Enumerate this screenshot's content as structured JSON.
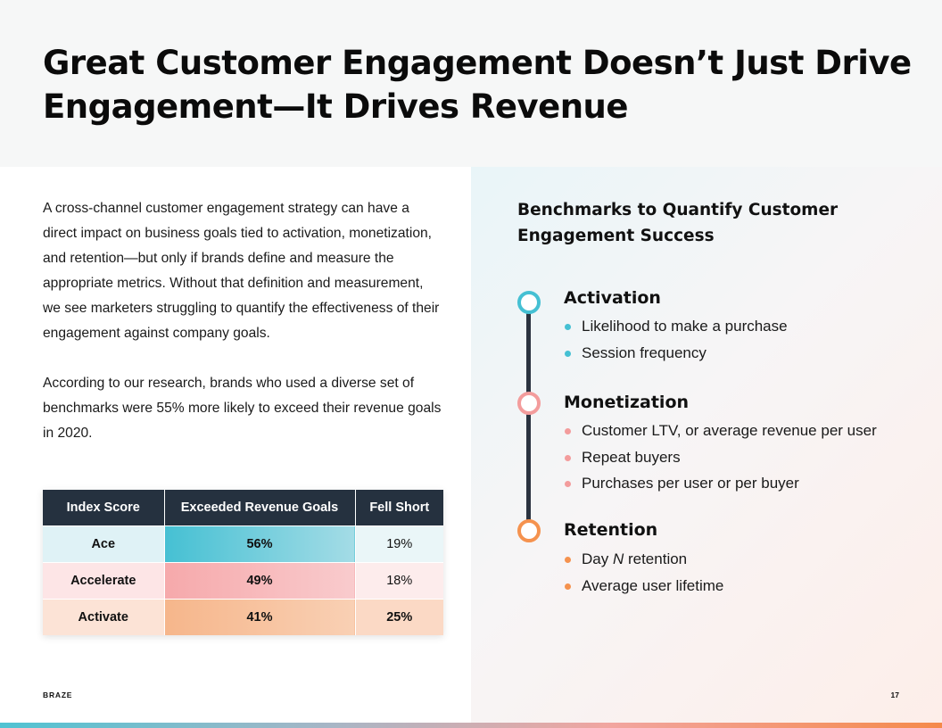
{
  "title": "Great Customer Engagement Doesn’t Just Drive Engagement—It Drives Revenue",
  "intro_paragraphs": [
    "A cross-channel customer engagement strategy can have a direct impact on business goals tied to activation, monetization, and retention—but only if brands define and measure the appropriate metrics. Without that definition and measurement, we see marketers struggling to quantify the effectiveness of their engagement against company goals.",
    "According to our research, brands who used a diverse set of benchmarks were 55% more likely to exceed their revenue goals in 2020."
  ],
  "table": {
    "headers": [
      "Index Score",
      "Exceeded Revenue Goals",
      "Fell Short"
    ],
    "rows": [
      {
        "name": "Ace",
        "exceeded": "56%",
        "fell_short": "19%"
      },
      {
        "name": "Accelerate",
        "exceeded": "49%",
        "fell_short": "18%"
      },
      {
        "name": "Activate",
        "exceeded": "41%",
        "fell_short": "25%"
      }
    ]
  },
  "benchmarks": {
    "title": "Benchmarks to Quantify Customer Engagement Success",
    "sections": [
      {
        "title": "Activation",
        "color": "#45c0d3",
        "items": [
          "Likelihood to make a purchase",
          "Session frequency"
        ]
      },
      {
        "title": "Monetization",
        "color": "#f39c9c",
        "items": [
          "Customer LTV, or average revenue per user",
          "Repeat buyers",
          "Purchases per user or per buyer"
        ]
      },
      {
        "title": "Retention",
        "color": "#f5924e",
        "items": [
          "Day N retention",
          "Average user lifetime"
        ]
      }
    ]
  },
  "footer": {
    "brand": "BRAZE",
    "page": "17"
  }
}
